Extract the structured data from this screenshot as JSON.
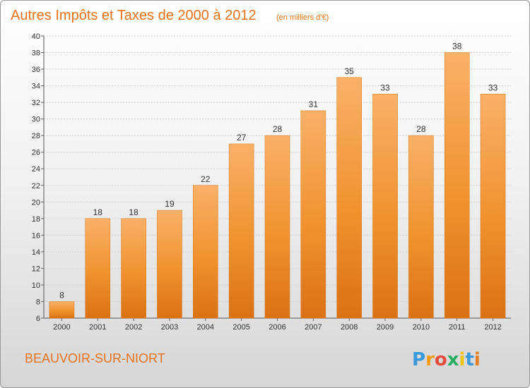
{
  "header": {
    "title": "Autres Impôts et Taxes de 2000 à 2012",
    "unit": "(en milliers d'€)"
  },
  "footer": {
    "place": "BEAUVOIR-SUR-NIORT",
    "brand": {
      "letters": [
        "P",
        "r",
        "o",
        "x",
        "i",
        "t",
        "i"
      ],
      "colors": [
        "#3a9ad9",
        "#f39c12",
        "#e74c3c",
        "#27ae60",
        "#f1c40f",
        "#3a9ad9",
        "#e67e22"
      ]
    }
  },
  "chart_data": {
    "type": "bar",
    "title": "Autres Impôts et Taxes de 2000 à 2012",
    "subtitle": "(en milliers d'€)",
    "categories": [
      "2000",
      "2001",
      "2002",
      "2003",
      "2004",
      "2005",
      "2006",
      "2007",
      "2008",
      "2009",
      "2010",
      "2011",
      "2012"
    ],
    "values": [
      8,
      18,
      18,
      19,
      22,
      27,
      28,
      31,
      35,
      33,
      28,
      38,
      33
    ],
    "ylim": [
      6,
      40
    ],
    "yticks": [
      6,
      8,
      10,
      12,
      14,
      16,
      18,
      20,
      22,
      24,
      26,
      28,
      30,
      32,
      34,
      36,
      38,
      40
    ],
    "grid": true,
    "bar_color": "#f0922e",
    "bar_color_light": "#f9b168",
    "bar_color_dark": "#d97216"
  }
}
